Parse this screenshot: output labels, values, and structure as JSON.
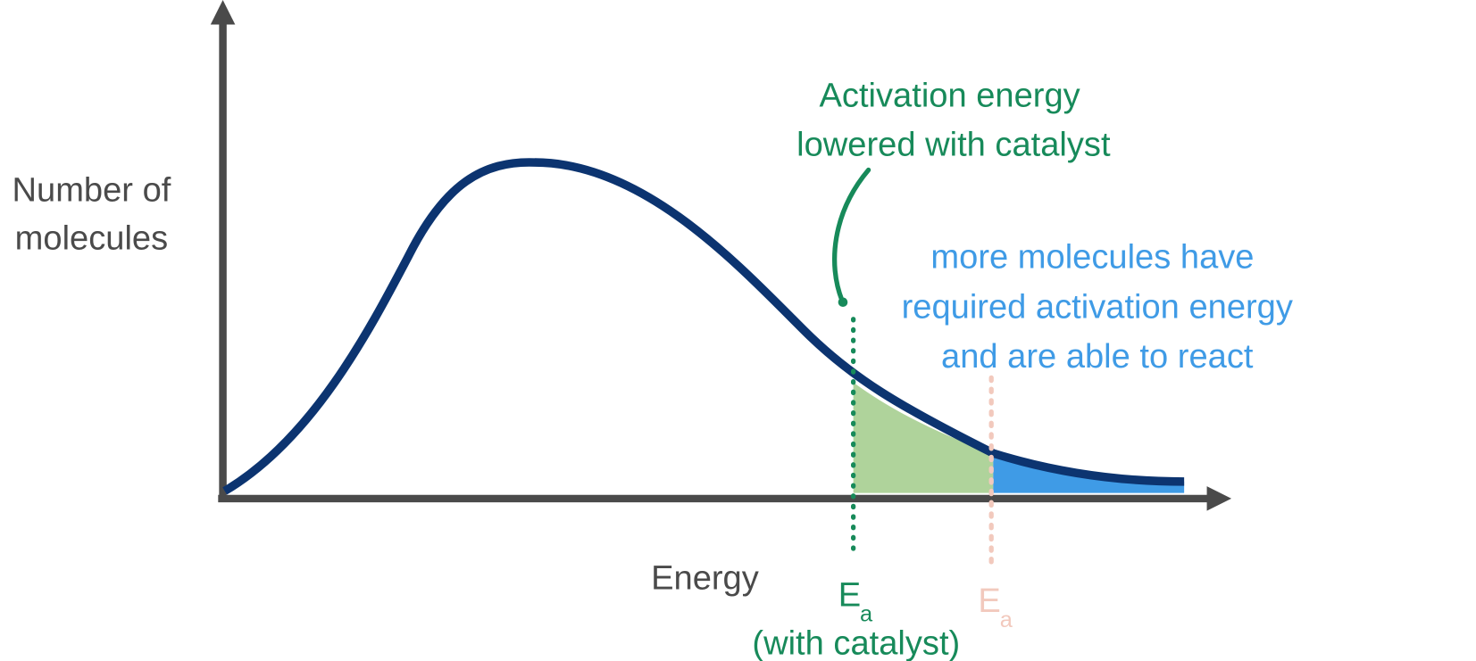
{
  "y_axis_label": {
    "lines": [
      "Number of",
      "molecules"
    ]
  },
  "x_axis_label": "Energy",
  "catalyst_note": {
    "lines": [
      "Activation energy",
      "lowered with catalyst"
    ]
  },
  "area_note": {
    "lines": [
      "more molecules have",
      "required activation energy",
      "and are able to react"
    ]
  },
  "ea_catalyst": {
    "symbol": "E",
    "subscript": "a",
    "note": "(with catalyst)"
  },
  "ea_uncatalysed": {
    "symbol": "E",
    "subscript": "a"
  }
}
